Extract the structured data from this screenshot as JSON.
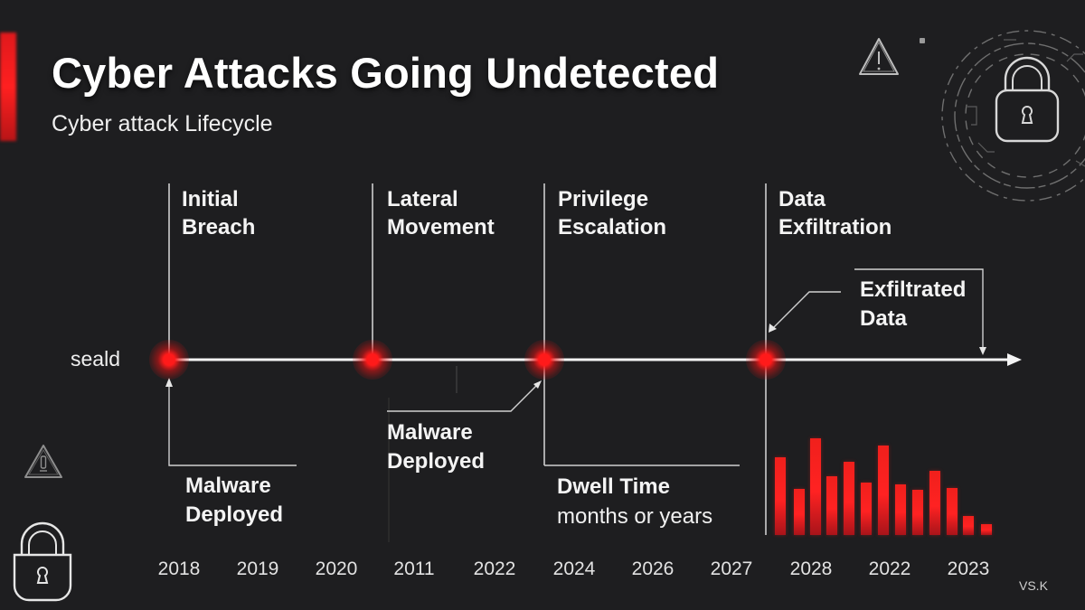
{
  "header": {
    "title": "Cyber Attacks Going Undetected",
    "subtitle": "Cyber attack Lifecycle"
  },
  "colors": {
    "background": "#1e1e20",
    "accent": "#e81b1e",
    "line": "#f2f2f2",
    "text": "#ffffff"
  },
  "timeline": {
    "axis_label": "seald",
    "phases": [
      {
        "id": "initial-breach",
        "label": "Initial\nBreach"
      },
      {
        "id": "lateral-movement",
        "label": "Lateral\nMovement"
      },
      {
        "id": "privilege-escalation",
        "label": "Privilege\nEscalation"
      },
      {
        "id": "data-exfiltration",
        "label": "Data\nExfiltration"
      }
    ],
    "annotations": {
      "malware_deployed_1": "Malware\nDeployed",
      "malware_deployed_2": "Malware\nDeployed",
      "dwell_time_title": "Dwell Time",
      "dwell_time_sub": "months or years",
      "exfiltrated_data": "Exfiltrated\nData"
    },
    "years": [
      "2018",
      "2019",
      "2020",
      "2011",
      "2022",
      "2024",
      "2026",
      "2027",
      "2028",
      "2022",
      "2023"
    ]
  },
  "chart_data": {
    "type": "bar",
    "title": "",
    "xlabel": "",
    "ylabel": "",
    "categories": [
      "1",
      "2",
      "3",
      "4",
      "5",
      "6",
      "7",
      "8",
      "9",
      "10",
      "11",
      "12",
      "13"
    ],
    "values": [
      86,
      51,
      107,
      65,
      81,
      58,
      99,
      56,
      50,
      71,
      52,
      21,
      12
    ],
    "unit": "relative height (px)",
    "grid": false,
    "legend": "none",
    "color": "#e81b1e"
  },
  "icons": {
    "top_warning": "warning-triangle-icon",
    "top_lock": "padlock-icon",
    "bottom_warning": "warning-triangle-icon",
    "bottom_lock": "padlock-icon"
  },
  "footer": {
    "signature": "VS.K"
  }
}
